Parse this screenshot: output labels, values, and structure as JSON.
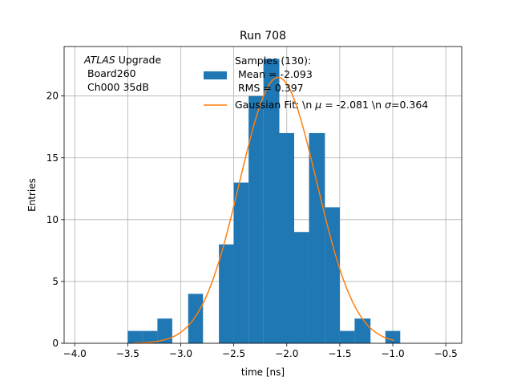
{
  "chart_data": {
    "type": "bar",
    "title": "Run 708",
    "xlabel": "time [ns]",
    "ylabel": "Entries",
    "xlim": [
      -4.1,
      -0.35
    ],
    "ylim": [
      0,
      24
    ],
    "grid": true,
    "xticks": [
      -4.0,
      -3.5,
      -3.0,
      -2.5,
      -2.0,
      -1.5,
      -1.0,
      -0.5
    ],
    "xtick_labels": [
      "−4.0",
      "−3.5",
      "−3.0",
      "−2.5",
      "−2.0",
      "−1.5",
      "−1.0",
      "−0.5"
    ],
    "yticks": [
      0,
      5,
      10,
      15,
      20
    ],
    "ytick_labels": [
      "0",
      "5",
      "10",
      "15",
      "20"
    ],
    "annotation": {
      "line1_italic": "ATLAS",
      "line1_rest": " Upgrade",
      "line2": "Board260",
      "line3": "Ch000 35dB",
      "position": "top-left"
    },
    "histogram": {
      "name": "Samples",
      "bins": [
        {
          "left": -3.5,
          "right": -3.36,
          "count": 1
        },
        {
          "left": -3.36,
          "right": -3.22,
          "count": 1
        },
        {
          "left": -3.22,
          "right": -3.08,
          "count": 2
        },
        {
          "left": -2.93,
          "right": -2.79,
          "count": 4
        },
        {
          "left": -2.64,
          "right": -2.5,
          "count": 8
        },
        {
          "left": -2.5,
          "right": -2.36,
          "count": 13
        },
        {
          "left": -2.36,
          "right": -2.22,
          "count": 20
        },
        {
          "left": -2.22,
          "right": -2.07,
          "count": 23
        },
        {
          "left": -2.07,
          "right": -1.93,
          "count": 17
        },
        {
          "left": -1.93,
          "right": -1.79,
          "count": 9
        },
        {
          "left": -1.79,
          "right": -1.64,
          "count": 17
        },
        {
          "left": -1.64,
          "right": -1.5,
          "count": 11
        },
        {
          "left": -1.5,
          "right": -1.36,
          "count": 1
        },
        {
          "left": -1.36,
          "right": -1.21,
          "count": 2
        },
        {
          "left": -1.07,
          "right": -0.93,
          "count": 1
        }
      ],
      "color": "#1f77b4"
    },
    "fit": {
      "name": "Gaussian Fit",
      "mu": -2.081,
      "sigma": 0.364,
      "amplitude": 21.5,
      "x_range": [
        -3.45,
        -0.99
      ],
      "color": "#ff7f0e"
    },
    "legend": {
      "position": "top-right",
      "samples_line1": "Samples (130):",
      "samples_line2": "Mean = -2.093",
      "samples_line3": "RMS = 0.397",
      "fit_prefix": "Gaussian Fit: \\n ",
      "fit_mu_sym": "μ",
      "fit_mid": " = -2.081 \\n ",
      "fit_sigma_sym": "σ",
      "fit_suffix": "=0.364"
    }
  }
}
